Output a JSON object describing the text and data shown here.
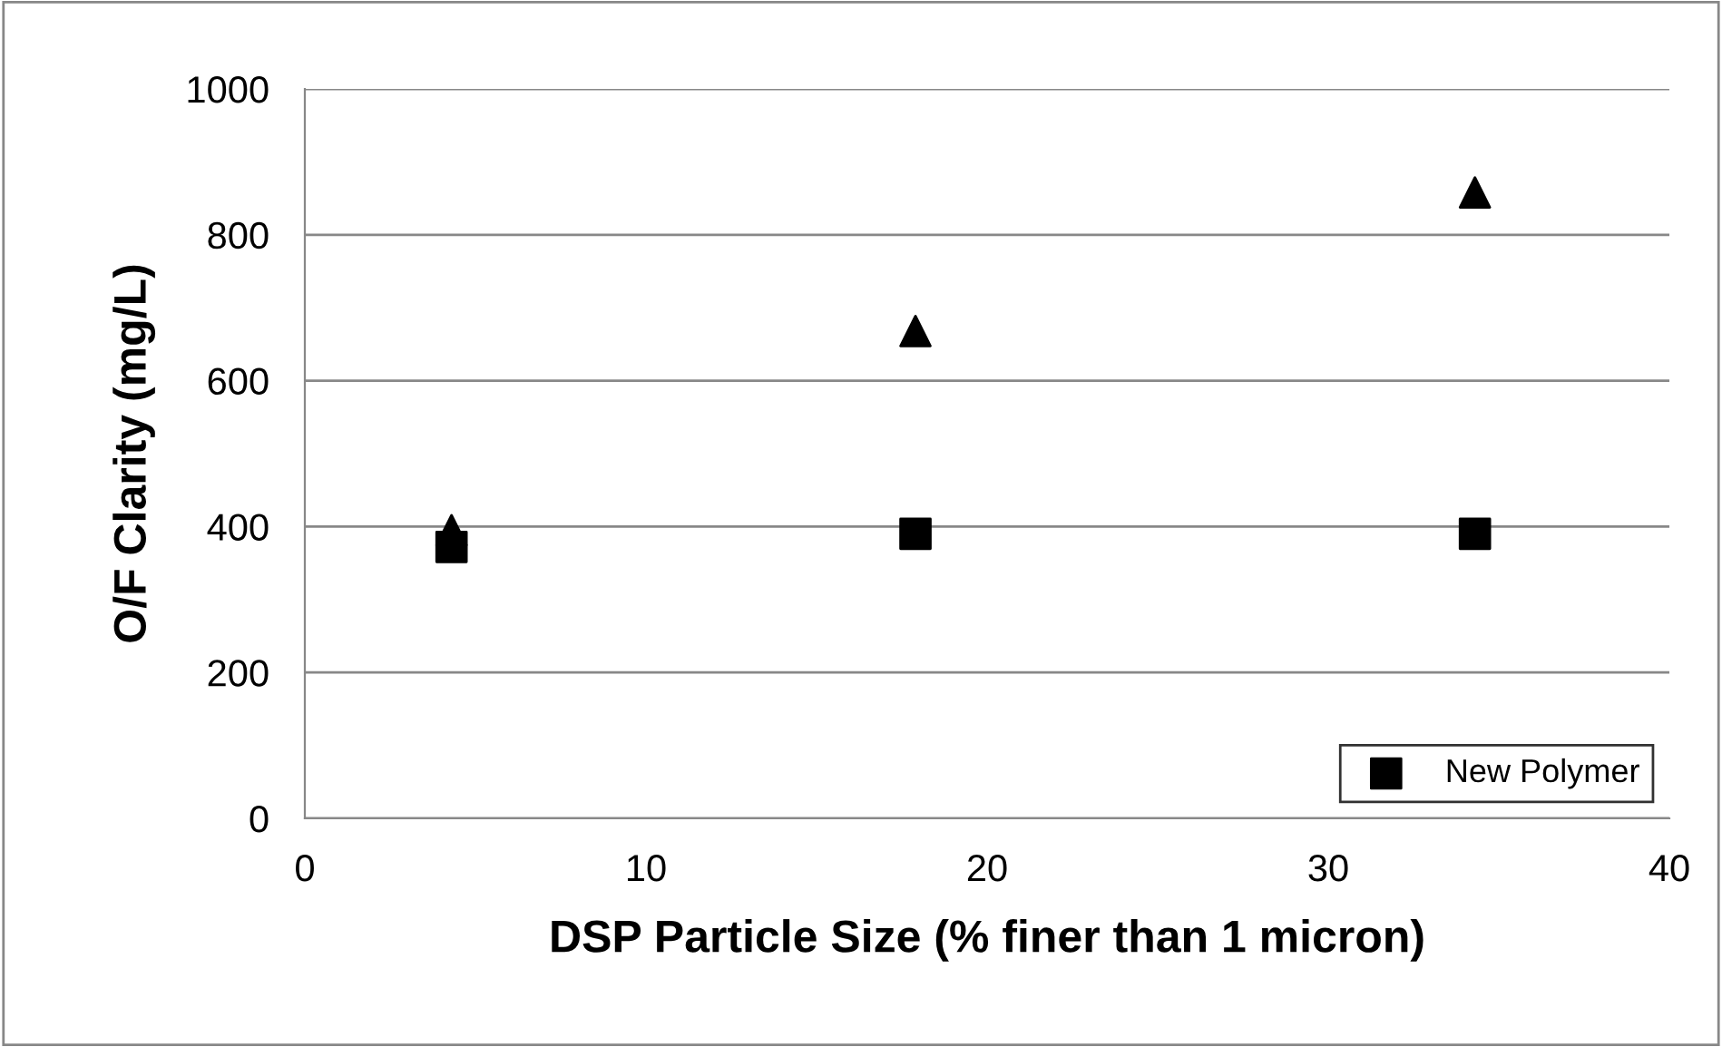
{
  "chart_data": {
    "type": "scatter",
    "xlabel": "DSP Particle Size (% finer than 1 micron)",
    "ylabel": "O/F Clarity (mg/L)",
    "series": [
      {
        "color": "#000000",
        "marker": "triangle",
        "x": [
          4.3,
          17.9,
          34.3
        ],
        "values": [
          395,
          668,
          858
        ]
      },
      {
        "name": "New Polymer",
        "color": "#000000",
        "marker": "square",
        "x": [
          4.3,
          17.9,
          34.3
        ],
        "values": [
          372,
          390,
          390
        ]
      }
    ],
    "xlim": [
      0,
      40
    ],
    "xticks": [
      0,
      10,
      20,
      30,
      40
    ],
    "ylim": [
      0,
      1000
    ],
    "yticks": [
      0,
      200,
      400,
      600,
      800,
      1000
    ],
    "grid": "y",
    "legend": "bottom right"
  }
}
